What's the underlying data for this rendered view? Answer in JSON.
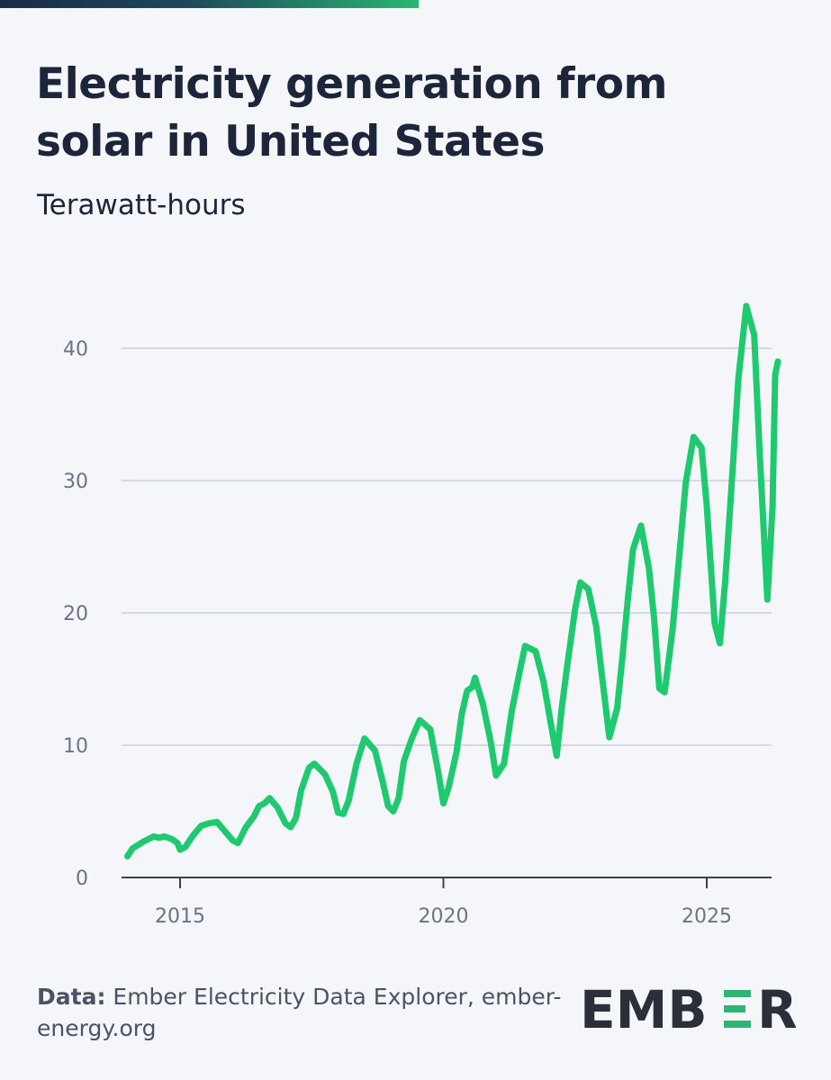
{
  "title": "Electricity generation from solar in United States",
  "subtitle": "Terawatt-hours",
  "source_label": "Data:",
  "source_text": "Ember Electricity Data Explorer, ember-energy.org",
  "logo": "EMBER",
  "colors": {
    "line": "#1ec96f",
    "text": "#1c2539",
    "grid": "#d5d9e3",
    "accent": "#2bb673"
  },
  "chart_data": {
    "type": "line",
    "title": "Electricity generation from solar in United States",
    "ylabel": "Terawatt-hours",
    "xlabel": "",
    "ylim": [
      0,
      45
    ],
    "xlim": [
      2014.0,
      2026.3
    ],
    "yticks": [
      0,
      10,
      20,
      30,
      40
    ],
    "xticks": [
      2015,
      2020,
      2025
    ],
    "grid": true,
    "series": [
      {
        "values": [
          [
            2014.0,
            1.6
          ],
          [
            2014.1,
            2.2
          ],
          [
            2014.3,
            2.7
          ],
          [
            2014.5,
            3.1
          ],
          [
            2014.6,
            3.0
          ],
          [
            2014.7,
            3.1
          ],
          [
            2014.85,
            2.9
          ],
          [
            2014.95,
            2.6
          ],
          [
            2015.0,
            2.1
          ],
          [
            2015.1,
            2.3
          ],
          [
            2015.25,
            3.2
          ],
          [
            2015.4,
            3.9
          ],
          [
            2015.55,
            4.1
          ],
          [
            2015.7,
            4.2
          ],
          [
            2015.85,
            3.5
          ],
          [
            2016.0,
            2.8
          ],
          [
            2016.1,
            2.6
          ],
          [
            2016.25,
            3.8
          ],
          [
            2016.4,
            4.6
          ],
          [
            2016.5,
            5.4
          ],
          [
            2016.6,
            5.6
          ],
          [
            2016.7,
            6.0
          ],
          [
            2016.85,
            5.3
          ],
          [
            2017.0,
            4.1
          ],
          [
            2017.1,
            3.8
          ],
          [
            2017.2,
            4.5
          ],
          [
            2017.3,
            6.6
          ],
          [
            2017.45,
            8.3
          ],
          [
            2017.55,
            8.6
          ],
          [
            2017.75,
            7.8
          ],
          [
            2017.9,
            6.5
          ],
          [
            2018.0,
            4.9
          ],
          [
            2018.1,
            4.8
          ],
          [
            2018.2,
            5.8
          ],
          [
            2018.35,
            8.6
          ],
          [
            2018.5,
            10.5
          ],
          [
            2018.7,
            9.6
          ],
          [
            2018.85,
            7.2
          ],
          [
            2018.95,
            5.4
          ],
          [
            2019.05,
            5.0
          ],
          [
            2019.15,
            6.0
          ],
          [
            2019.25,
            8.8
          ],
          [
            2019.4,
            10.5
          ],
          [
            2019.55,
            11.9
          ],
          [
            2019.75,
            11.2
          ],
          [
            2019.9,
            8.0
          ],
          [
            2020.0,
            5.6
          ],
          [
            2020.1,
            6.8
          ],
          [
            2020.25,
            9.5
          ],
          [
            2020.35,
            12.4
          ],
          [
            2020.45,
            14.1
          ],
          [
            2020.55,
            14.4
          ],
          [
            2020.6,
            15.1
          ],
          [
            2020.75,
            13.1
          ],
          [
            2020.9,
            10.2
          ],
          [
            2021.0,
            7.7
          ],
          [
            2021.15,
            8.6
          ],
          [
            2021.3,
            12.6
          ],
          [
            2021.45,
            15.6
          ],
          [
            2021.55,
            17.5
          ],
          [
            2021.75,
            17.1
          ],
          [
            2021.9,
            14.8
          ],
          [
            2022.05,
            11.4
          ],
          [
            2022.15,
            9.2
          ],
          [
            2022.25,
            12.9
          ],
          [
            2022.35,
            16.0
          ],
          [
            2022.5,
            20.3
          ],
          [
            2022.6,
            22.3
          ],
          [
            2022.75,
            21.8
          ],
          [
            2022.9,
            19.0
          ],
          [
            2023.0,
            15.6
          ],
          [
            2023.15,
            10.6
          ],
          [
            2023.3,
            12.8
          ],
          [
            2023.4,
            16.7
          ],
          [
            2023.5,
            21.0
          ],
          [
            2023.6,
            24.8
          ],
          [
            2023.75,
            26.6
          ],
          [
            2023.9,
            23.4
          ],
          [
            2024.0,
            19.6
          ],
          [
            2024.1,
            14.3
          ],
          [
            2024.2,
            14.0
          ],
          [
            2024.35,
            18.7
          ],
          [
            2024.5,
            25.3
          ],
          [
            2024.6,
            29.8
          ],
          [
            2024.75,
            33.3
          ],
          [
            2024.9,
            32.5
          ],
          [
            2025.0,
            28.1
          ],
          [
            2025.15,
            19.2
          ],
          [
            2025.25,
            17.7
          ],
          [
            2025.35,
            22.4
          ],
          [
            2025.5,
            31.4
          ],
          [
            2025.6,
            37.7
          ],
          [
            2025.75,
            43.2
          ],
          [
            2025.9,
            41.0
          ],
          [
            2026.0,
            32.5
          ],
          [
            2026.15,
            21.0
          ],
          [
            2026.25,
            28.0
          ],
          [
            2026.3,
            38.0
          ],
          [
            2026.35,
            39.0
          ]
        ]
      }
    ]
  }
}
